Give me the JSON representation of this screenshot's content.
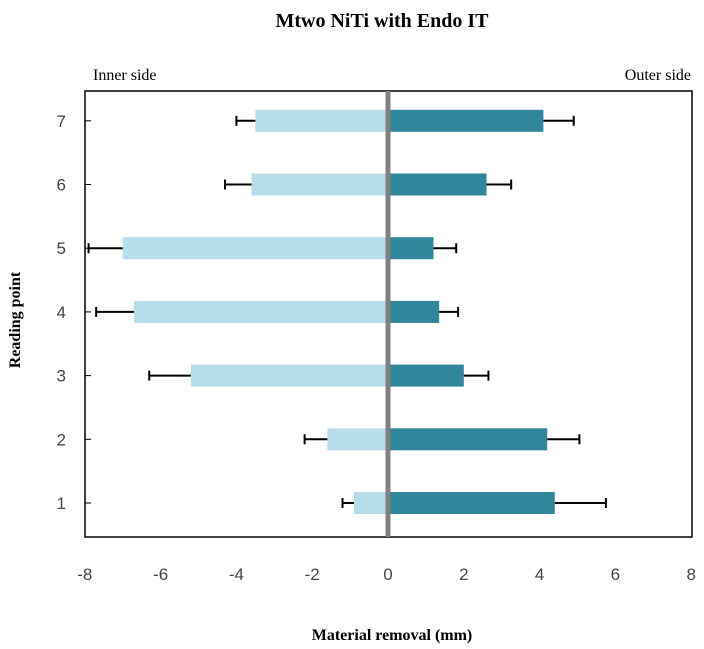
{
  "chart_data": {
    "type": "bar",
    "orientation": "horizontal",
    "title": "Mtwo NiTi with Endo IT",
    "xlabel": "Material removal (mm)",
    "ylabel": "Reading point",
    "inner_label": "Inner side",
    "outer_label": "Outer side",
    "categories": [
      "1",
      "2",
      "3",
      "4",
      "5",
      "6",
      "7"
    ],
    "xlim": [
      -8,
      8
    ],
    "xticks": [
      "-8",
      "-6",
      "-4",
      "-2",
      "0",
      "2",
      "4",
      "6",
      "8"
    ],
    "series": [
      {
        "values": [
          -0.9,
          -1.6,
          -5.2,
          -6.7,
          -7.0,
          -3.6,
          -3.5
        ],
        "errors": [
          0.3,
          0.6,
          1.1,
          1.0,
          0.9,
          0.7,
          0.5
        ],
        "color": "#b7dde8"
      },
      {
        "values": [
          4.4,
          4.2,
          2.0,
          1.35,
          1.2,
          2.6,
          4.1
        ],
        "errors": [
          1.35,
          0.85,
          0.65,
          0.5,
          0.6,
          0.65,
          0.8
        ],
        "color": "#31869b"
      }
    ],
    "zero_line_color": "#808080",
    "grid": false
  }
}
